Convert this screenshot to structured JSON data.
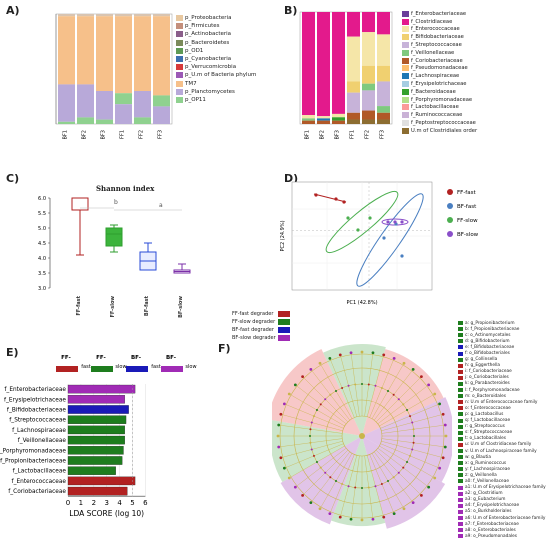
{
  "panels": {
    "a": "A)",
    "b": "B)",
    "c": "C)",
    "d": "D)",
    "e": "E)",
    "f": "F)"
  },
  "panelA": {
    "samples": [
      "BF1",
      "BF2",
      "BF3",
      "FF1",
      "FF2",
      "FF3"
    ],
    "legend": [
      {
        "label": "p_Proteobacteria",
        "color": "#e8c8a0"
      },
      {
        "label": "p_Firmicutes",
        "color": "#c48f7c"
      },
      {
        "label": "p_Actinobacteria",
        "color": "#8a5e8a"
      },
      {
        "label": "p_Bacteroidetes",
        "color": "#7b8a5a"
      },
      {
        "label": "p_OD1",
        "color": "#5e9a55"
      },
      {
        "label": "p_Cyanobacteria",
        "color": "#3c6fb0"
      },
      {
        "label": "p_Verrucomicrobia",
        "color": "#d83a3a"
      },
      {
        "label": "p_U.m of Bacteria phylum",
        "color": "#9b59b6"
      },
      {
        "label": "TM7",
        "color": "#f6c08a"
      },
      {
        "label": "p_Planctomycetes",
        "color": "#b8a9d9"
      },
      {
        "label": "p_OP11",
        "color": "#8fd18f"
      }
    ]
  },
  "panelB": {
    "samples": [
      "BF1",
      "BF2",
      "BF3",
      "FF1",
      "FF2",
      "FF3"
    ],
    "legend": [
      {
        "label": "f_Enterobacteriaceae",
        "color": "#6a3d9a"
      },
      {
        "label": "f_Clostridiaceae",
        "color": "#e31a8c"
      },
      {
        "label": "f_Enterococcaceae",
        "color": "#f5e6a8"
      },
      {
        "label": "f_Bifidobacteriaceae",
        "color": "#f0d070"
      },
      {
        "label": "f_Streptococcaceae",
        "color": "#c7b3d9"
      },
      {
        "label": "f_Veillonellaceae",
        "color": "#7fc97f"
      },
      {
        "label": "f_Coriobacteriaceae",
        "color": "#b15928"
      },
      {
        "label": "f_Pseudomonadaceae",
        "color": "#fdbf6f"
      },
      {
        "label": "f_Lachnospiraceae",
        "color": "#1f78b4"
      },
      {
        "label": "f_Erysipelotrichaceae",
        "color": "#a6cee3"
      },
      {
        "label": "f_Bacteroidaceae",
        "color": "#33a02c"
      },
      {
        "label": "f_Porphyromonadaceae",
        "color": "#b2df8a"
      },
      {
        "label": "f_Lactobacillaceae",
        "color": "#fb9a99"
      },
      {
        "label": "f_Ruminococcaceae",
        "color": "#cab2d6"
      },
      {
        "label": "f_Peptostreptococcaceae",
        "color": "#e0e0e0"
      },
      {
        "label": "U.m of Clostridiales order",
        "color": "#8c6d31"
      }
    ]
  },
  "panelC": {
    "title": "Shannon index",
    "yticks": [
      "6.0",
      "5.5",
      "5.0",
      "4.5",
      "4.0",
      "3.5",
      "3.0"
    ],
    "groups": [
      "FF-fast",
      "FF-slow",
      "BF-fast",
      "BF-slow"
    ],
    "sig_a": "a",
    "sig_b": "b",
    "colors": [
      "#b22222",
      "#2e9e2e",
      "#2a4bd7",
      "#7b2fa8"
    ]
  },
  "panelD": {
    "xlabel": "PC1 (42.8%)",
    "ylabel": "PC2 (24.9%)",
    "legend": [
      {
        "label": "FF-fast",
        "color": "#b22222"
      },
      {
        "label": "BF-fast",
        "color": "#4a7fc1"
      },
      {
        "label": "FF-slow",
        "color": "#4caf50"
      },
      {
        "label": "BF-slow",
        "color": "#8a4fc9"
      }
    ]
  },
  "panelE": {
    "legend": [
      {
        "label": "FF-fast",
        "color": "#b22222"
      },
      {
        "label": "FF-slow",
        "color": "#1e7d1e"
      },
      {
        "label": "BF-fast",
        "color": "#1a1ab8"
      },
      {
        "label": "BF-slow",
        "color": "#a02bb5"
      }
    ],
    "xlabel": "LDA SCORE (log 10)",
    "xticks": [
      "0",
      "1",
      "2",
      "3",
      "4",
      "5",
      "6"
    ]
  },
  "chart_data": {
    "type": "bar",
    "categories": [
      "f_Enterobacteriaceae",
      "f_Erysipelotrichaceae",
      "f_Bifidobacteriaceae",
      "f_Streptococcaceae",
      "f_Lachnospiraceae",
      "f_Veillonellaceae",
      "f_Porphyromonadaceae",
      "f_Propionibacteriaceae",
      "f_Lactobacillaceae",
      "f_Enterococcaceae",
      "f_Coriobacteriaceae"
    ],
    "values": [
      5.2,
      4.4,
      4.7,
      4.5,
      4.4,
      4.4,
      4.3,
      4.2,
      3.7,
      5.2,
      4.6
    ],
    "groups": [
      "BF-slow",
      "BF-slow",
      "BF-fast",
      "FF-slow",
      "FF-slow",
      "FF-slow",
      "FF-slow",
      "FF-slow",
      "FF-slow",
      "FF-fast",
      "FF-fast"
    ],
    "xlabel": "LDA SCORE (log 10)",
    "xlim": [
      0,
      6
    ]
  },
  "panelF": {
    "legend_groups": [
      {
        "label": "FF-fast degrader",
        "color": "#b22222"
      },
      {
        "label": "FF-slow degrader",
        "color": "#1e7d1e"
      },
      {
        "label": "BF-fast degrader",
        "color": "#1a1ab8"
      },
      {
        "label": "BF-slow degrader",
        "color": "#a02bb5"
      }
    ],
    "taxa": [
      {
        "label": "a: g_Propionibacterium",
        "color": "#1e7d1e"
      },
      {
        "label": "b: f_Propionibacteriaceae",
        "color": "#1e7d1e"
      },
      {
        "label": "c: o_Actinomycetales",
        "color": "#1e7d1e"
      },
      {
        "label": "d: g_Bifidobacterium",
        "color": "#1e7d1e"
      },
      {
        "label": "e: f_Bifidobacteriaceae",
        "color": "#1a1ab8"
      },
      {
        "label": "f: o_Bifidobacteriales",
        "color": "#1a1ab8"
      },
      {
        "label": "g: g_Collinsella",
        "color": "#1e7d1e"
      },
      {
        "label": "h: g_Eggerthella",
        "color": "#b22222"
      },
      {
        "label": "i: f_Coriobacteriaceae",
        "color": "#b22222"
      },
      {
        "label": "j: o_Coriobacteriales",
        "color": "#b22222"
      },
      {
        "label": "k: g_Parabacteroides",
        "color": "#1e7d1e"
      },
      {
        "label": "l: f_Porphyromonadaceae",
        "color": "#1e7d1e"
      },
      {
        "label": "m: o_Bacteroidales",
        "color": "#1e7d1e"
      },
      {
        "label": "n: U.m of Enterococcaceae family",
        "color": "#b22222"
      },
      {
        "label": "o: f_Enterococcaceae",
        "color": "#b22222"
      },
      {
        "label": "p: g_Lactobacillus",
        "color": "#1e7d1e"
      },
      {
        "label": "q: f_Lactobacillaceae",
        "color": "#1e7d1e"
      },
      {
        "label": "r: g_Streptococcus",
        "color": "#1e7d1e"
      },
      {
        "label": "s: f_Streptococcaceae",
        "color": "#1e7d1e"
      },
      {
        "label": "t: o_Lactobacillales",
        "color": "#1e7d1e"
      },
      {
        "label": "u: U.m of Clostridiaceae family",
        "color": "#b22222"
      },
      {
        "label": "v: U.m of Lachnospiraceae family",
        "color": "#1e7d1e"
      },
      {
        "label": "w: g_Blautia",
        "color": "#1e7d1e"
      },
      {
        "label": "x: g_Ruminococcus",
        "color": "#1e7d1e"
      },
      {
        "label": "y: f_Lachnospiraceae",
        "color": "#1e7d1e"
      },
      {
        "label": "z: g_Veillonella",
        "color": "#1e7d1e"
      },
      {
        "label": "a0: f_Veillonellaceae",
        "color": "#1e7d1e"
      },
      {
        "label": "a1: U.m of Erysipelotrichaceae family",
        "color": "#a02bb5"
      },
      {
        "label": "a2: g_Clostridium",
        "color": "#a02bb5"
      },
      {
        "label": "a3: g_Eubacterium",
        "color": "#a02bb5"
      },
      {
        "label": "a4: f_Erysipelotrichaceae",
        "color": "#a02bb5"
      },
      {
        "label": "a5: o_Burkholderiales",
        "color": "#a02bb5"
      },
      {
        "label": "a6: U.m of Enterobacteriaceae family",
        "color": "#a02bb5"
      },
      {
        "label": "a7: f_Enterobacteriaceae",
        "color": "#a02bb5"
      },
      {
        "label": "a8: o_Enterobacteriales",
        "color": "#a02bb5"
      },
      {
        "label": "a9: o_Pseudomonadales",
        "color": "#a02bb5"
      }
    ]
  }
}
